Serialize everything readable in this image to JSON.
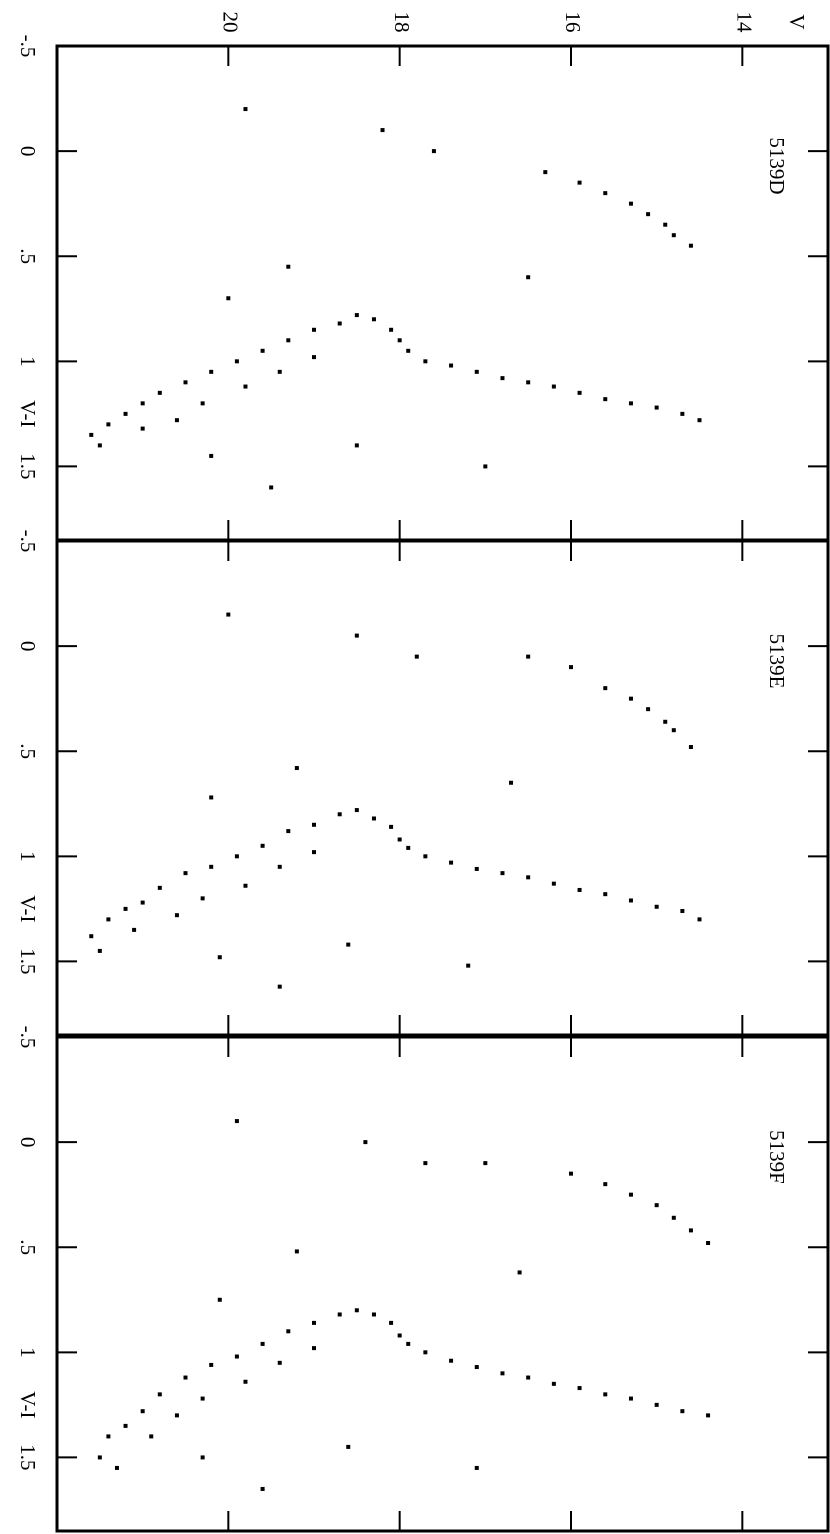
{
  "chart_data": [
    {
      "type": "scatter",
      "title": "5139D",
      "xlabel": "V-I",
      "ylabel": "V",
      "color": "#000000",
      "xlim": [
        -0.5,
        1.85
      ],
      "xticks": [
        {
          "value": -0.5,
          "label": "-.5"
        },
        0,
        {
          "value": 0.5,
          "label": ".5"
        },
        1,
        1.5
      ],
      "ylim": [
        22,
        13
      ],
      "yticks": [
        20,
        18,
        16,
        14
      ],
      "x": [
        1.35,
        1.3,
        1.4,
        1.25,
        1.2,
        1.32,
        1.15,
        1.28,
        1.1,
        1.2,
        1.05,
        1.0,
        1.12,
        0.95,
        1.05,
        0.9,
        0.85,
        0.98,
        0.82,
        0.78,
        0.8,
        0.85,
        0.9,
        0.95,
        1.0,
        1.02,
        1.05,
        1.08,
        1.1,
        1.12,
        1.15,
        1.18,
        1.2,
        1.22,
        1.25,
        1.28,
        0.45,
        0.4,
        0.35,
        0.3,
        0.25,
        0.2,
        0.15,
        0.1,
        -0.1,
        0.0,
        0.6,
        1.5,
        1.6,
        1.45,
        0.55,
        1.4,
        0.7,
        -0.2
      ],
      "values": [
        21.6,
        21.4,
        21.5,
        21.2,
        21.0,
        21.0,
        20.8,
        20.6,
        20.5,
        20.3,
        20.2,
        19.9,
        19.8,
        19.6,
        19.4,
        19.3,
        19.0,
        19.0,
        18.7,
        18.5,
        18.3,
        18.1,
        18.0,
        17.9,
        17.7,
        17.4,
        17.1,
        16.8,
        16.5,
        16.2,
        15.9,
        15.6,
        15.3,
        15.0,
        14.7,
        14.5,
        14.6,
        14.8,
        14.9,
        15.1,
        15.3,
        15.6,
        15.9,
        16.3,
        18.2,
        17.6,
        16.5,
        17.0,
        19.5,
        20.2,
        19.3,
        18.5,
        20.0,
        19.8
      ]
    },
    {
      "type": "scatter",
      "title": "5139E",
      "xlabel": "V-I",
      "color": "#000000",
      "xlim": [
        -0.5,
        1.85
      ],
      "xticks": [
        {
          "value": -0.5,
          "label": "-.5"
        },
        0,
        {
          "value": 0.5,
          "label": ".5"
        },
        1,
        1.5
      ],
      "ylim": [
        22,
        13
      ],
      "yticks": [
        20,
        18,
        16,
        14
      ],
      "x": [
        1.38,
        1.3,
        1.45,
        1.25,
        1.22,
        1.35,
        1.15,
        1.28,
        1.08,
        1.2,
        1.05,
        1.0,
        1.14,
        0.95,
        1.05,
        0.88,
        0.85,
        0.98,
        0.8,
        0.78,
        0.82,
        0.86,
        0.92,
        0.96,
        1.0,
        1.03,
        1.06,
        1.08,
        1.1,
        1.13,
        1.16,
        1.18,
        1.21,
        1.24,
        1.26,
        1.3,
        0.48,
        0.4,
        0.36,
        0.3,
        0.25,
        0.2,
        0.1,
        0.05,
        -0.05,
        0.05,
        0.65,
        1.52,
        1.62,
        1.48,
        0.58,
        1.42,
        0.72,
        -0.15
      ],
      "values": [
        21.6,
        21.4,
        21.5,
        21.2,
        21.0,
        21.1,
        20.8,
        20.6,
        20.5,
        20.3,
        20.2,
        19.9,
        19.8,
        19.6,
        19.4,
        19.3,
        19.0,
        19.0,
        18.7,
        18.5,
        18.3,
        18.1,
        18.0,
        17.9,
        17.7,
        17.4,
        17.1,
        16.8,
        16.5,
        16.2,
        15.9,
        15.6,
        15.3,
        15.0,
        14.7,
        14.5,
        14.6,
        14.8,
        14.9,
        15.1,
        15.3,
        15.6,
        16.0,
        16.5,
        18.5,
        17.8,
        16.7,
        17.2,
        19.4,
        20.1,
        19.2,
        18.6,
        20.2,
        20.0
      ]
    },
    {
      "type": "scatter",
      "title": "5139F",
      "xlabel": "V-I",
      "color": "#000000",
      "xlim": [
        -0.5,
        1.85
      ],
      "xticks": [
        {
          "value": -0.5,
          "label": "-.5"
        },
        0,
        {
          "value": 0.5,
          "label": ".5"
        },
        1,
        1.5
      ],
      "ylim": [
        22,
        13
      ],
      "yticks": [
        20,
        18,
        16,
        14
      ],
      "x": [
        1.5,
        1.4,
        1.55,
        1.35,
        1.28,
        1.4,
        1.2,
        1.3,
        1.12,
        1.22,
        1.06,
        1.02,
        1.14,
        0.96,
        1.05,
        0.9,
        0.86,
        0.98,
        0.82,
        0.8,
        0.82,
        0.86,
        0.92,
        0.96,
        1.0,
        1.04,
        1.07,
        1.1,
        1.12,
        1.15,
        1.17,
        1.2,
        1.22,
        1.25,
        1.28,
        1.3,
        0.48,
        0.42,
        0.36,
        0.3,
        0.25,
        0.2,
        0.15,
        0.1,
        0.0,
        0.1,
        0.62,
        1.55,
        1.65,
        1.5,
        0.52,
        1.45,
        0.75,
        -0.1
      ],
      "values": [
        21.5,
        21.4,
        21.3,
        21.2,
        21.0,
        20.9,
        20.8,
        20.6,
        20.5,
        20.3,
        20.2,
        19.9,
        19.8,
        19.6,
        19.4,
        19.3,
        19.0,
        19.0,
        18.7,
        18.5,
        18.3,
        18.1,
        18.0,
        17.9,
        17.7,
        17.4,
        17.1,
        16.8,
        16.5,
        16.2,
        15.9,
        15.6,
        15.3,
        15.0,
        14.7,
        14.4,
        14.4,
        14.6,
        14.8,
        15.0,
        15.3,
        15.6,
        16.0,
        17.0,
        18.4,
        17.7,
        16.6,
        17.1,
        19.6,
        20.3,
        19.2,
        18.6,
        20.1,
        19.9
      ]
    }
  ]
}
